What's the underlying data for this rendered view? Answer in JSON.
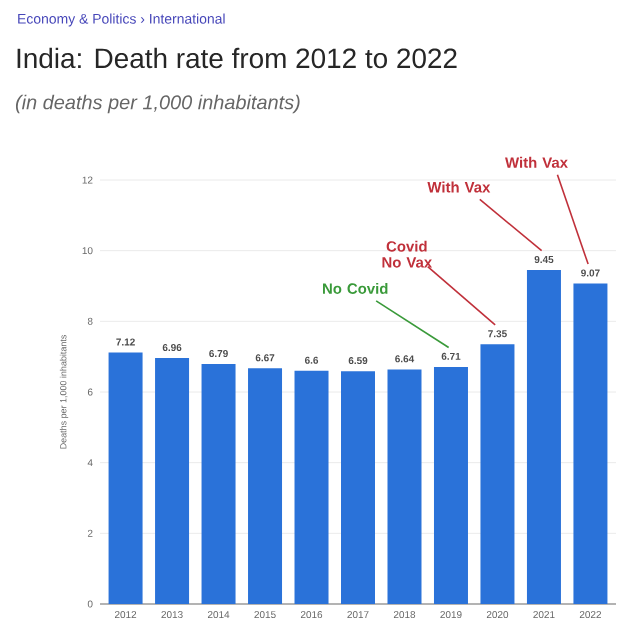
{
  "chart_data": {
    "type": "bar",
    "title": "India: Death rate from 2012 to 2022",
    "subtitle": "(in deaths per 1,000 inhabitants)",
    "ylabel": "Deaths per 1,000 inhabitants",
    "categories": [
      "2012",
      "2013",
      "2014",
      "2015",
      "2016",
      "2017",
      "2018",
      "2019",
      "2020",
      "2021",
      "2022"
    ],
    "values": [
      7.12,
      6.96,
      6.79,
      6.67,
      6.6,
      6.59,
      6.64,
      6.71,
      7.35,
      9.45,
      9.07
    ],
    "color": "#2a72d9",
    "ylim": [
      0,
      12
    ],
    "yticks": [
      0,
      2,
      4,
      6,
      8,
      10,
      12
    ],
    "grid": "y",
    "data_labels": true,
    "annotations": [
      "Economy & Politics › International",
      "No Covid",
      "Covid No Vax",
      "With Vax",
      "With Vax"
    ]
  }
}
